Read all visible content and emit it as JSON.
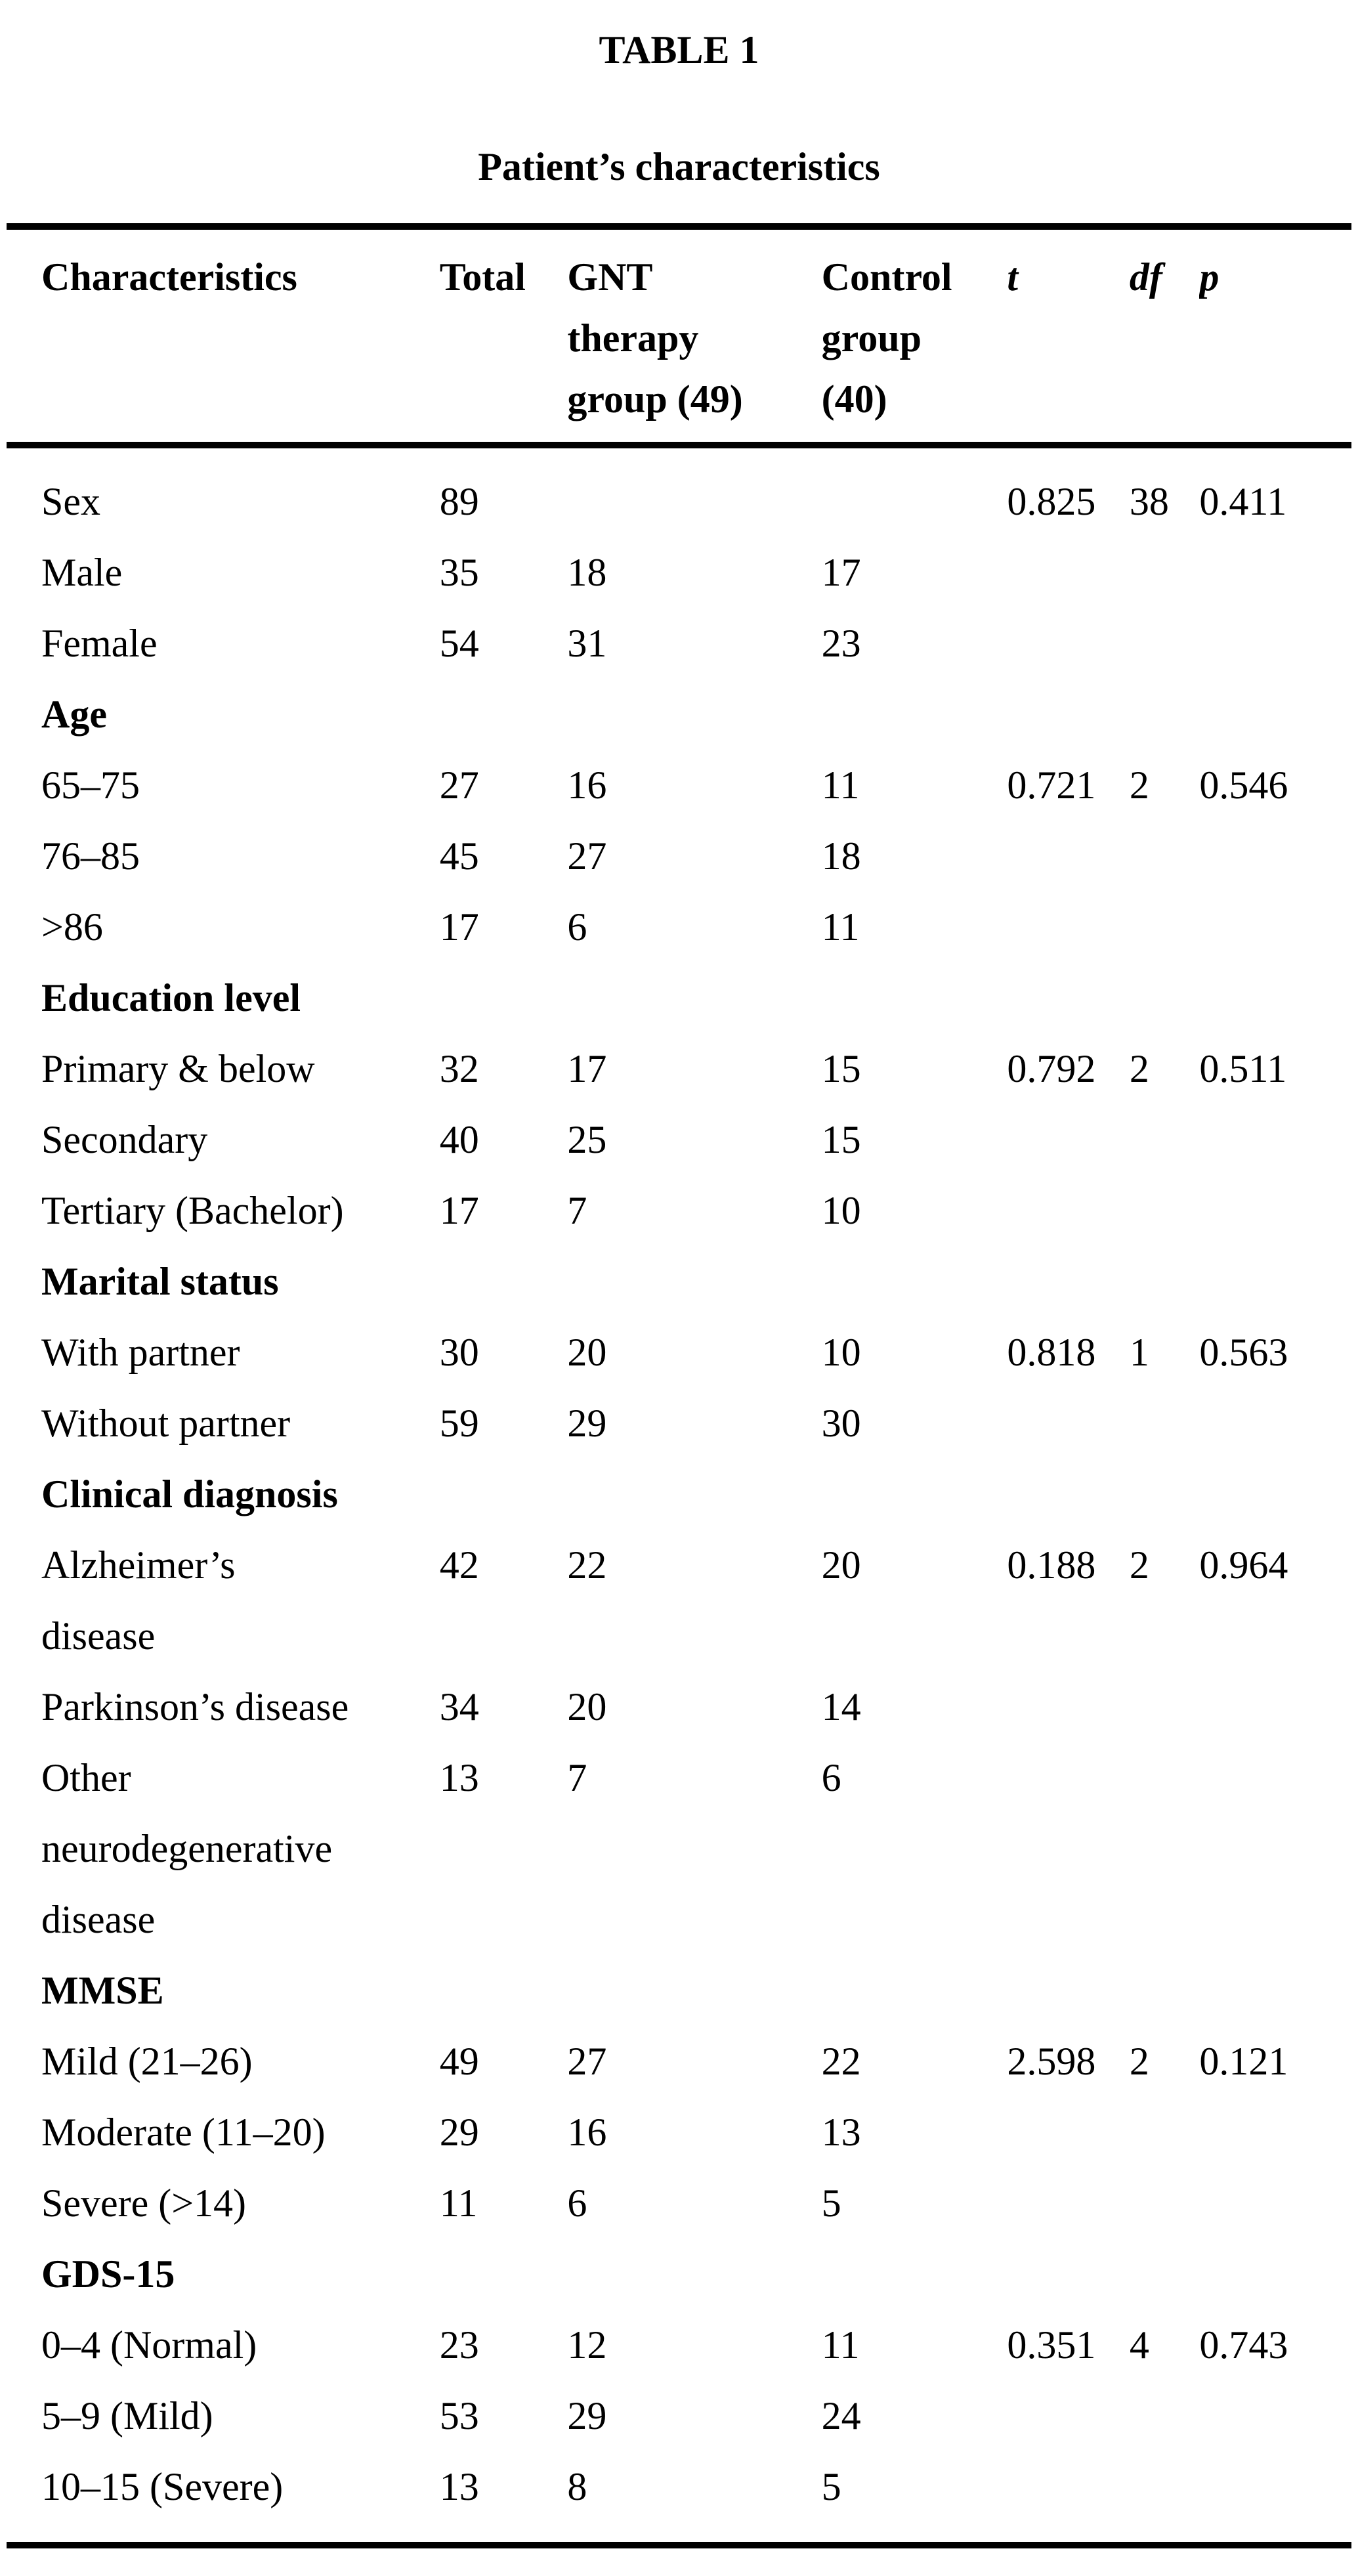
{
  "title": "TABLE 1",
  "subtitle": "Patient’s characteristics",
  "colors": {
    "text": "#000000",
    "background": "#ffffff",
    "rule": "#000000"
  },
  "table": {
    "columns": [
      {
        "key": "label",
        "label": "Characteristics",
        "italic": false
      },
      {
        "key": "total",
        "label": "Total",
        "italic": false
      },
      {
        "key": "gnt",
        "label": "GNT\ntherapy\ngroup (49)",
        "italic": false
      },
      {
        "key": "control",
        "label": "Control\ngroup\n(40)",
        "italic": false
      },
      {
        "key": "t",
        "label": "t",
        "italic": true
      },
      {
        "key": "df",
        "label": "df",
        "italic": true
      },
      {
        "key": "p",
        "label": "p",
        "italic": true
      }
    ],
    "rows": [
      {
        "label": "Sex",
        "total": "89",
        "gnt": "",
        "control": "",
        "t": "0.825",
        "df": "38",
        "p": "0.411",
        "category": false
      },
      {
        "label": "Male",
        "total": "35",
        "gnt": "18",
        "control": "17",
        "category": false
      },
      {
        "label": "Female",
        "total": "54",
        "gnt": "31",
        "control": "23",
        "category": false
      },
      {
        "label": "Age",
        "category": true
      },
      {
        "label": "65–75",
        "total": "27",
        "gnt": "16",
        "control": "11",
        "t": "0.721",
        "df": "2",
        "p": "0.546",
        "category": false
      },
      {
        "label": "76–85",
        "total": "45",
        "gnt": "27",
        "control": "18",
        "category": false
      },
      {
        "label": ">86",
        "total": "17",
        "gnt": "6",
        "control": "11",
        "category": false
      },
      {
        "label": "Education level",
        "category": true
      },
      {
        "label": "Primary & below",
        "total": "32",
        "gnt": "17",
        "control": "15",
        "t": "0.792",
        "df": "2",
        "p": "0.511",
        "category": false
      },
      {
        "label": "Secondary",
        "total": "40",
        "gnt": "25",
        "control": "15",
        "category": false
      },
      {
        "label": "Tertiary (Bachelor)",
        "total": "17",
        "gnt": "7",
        "control": "10",
        "category": false
      },
      {
        "label": "Marital status",
        "category": true
      },
      {
        "label": "With partner",
        "total": "30",
        "gnt": "20",
        "control": "10",
        "t": "0.818",
        "df": "1",
        "p": "0.563",
        "category": false
      },
      {
        "label": "Without partner",
        "total": "59",
        "gnt": "29",
        "control": "30",
        "category": false
      },
      {
        "label": "Clinical diagnosis",
        "category": true
      },
      {
        "label": "Alzheimer’s\ndisease",
        "total": "42",
        "gnt": "22",
        "control": "20",
        "t": "0.188",
        "df": "2",
        "p": "0.964",
        "category": false
      },
      {
        "label": "Parkinson’s disease",
        "total": "34",
        "gnt": "20",
        "control": "14",
        "category": false
      },
      {
        "label": "Other\nneurodegenerative\ndisease",
        "total": "13",
        "gnt": "7",
        "control": "6",
        "category": false
      },
      {
        "label": "MMSE",
        "category": true
      },
      {
        "label": "Mild (21–26)",
        "total": "49",
        "gnt": "27",
        "control": "22",
        "t": "2.598",
        "df": "2",
        "p": "0.121",
        "category": false
      },
      {
        "label": "Moderate (11–20)",
        "total": "29",
        "gnt": "16",
        "control": "13",
        "category": false
      },
      {
        "label": "Severe (>14)",
        "total": "11",
        "gnt": "6",
        "control": "5",
        "category": false
      },
      {
        "label": "GDS-15",
        "category": true
      },
      {
        "label": "0–4 (Normal)",
        "total": "23",
        "gnt": "12",
        "control": "11",
        "t": "0.351",
        "df": "4",
        "p": "0.743",
        "category": false
      },
      {
        "label": "5–9 (Mild)",
        "total": "53",
        "gnt": "29",
        "control": "24",
        "category": false
      },
      {
        "label": "10–15 (Severe)",
        "total": "13",
        "gnt": "8",
        "control": "5",
        "category": false
      }
    ]
  }
}
